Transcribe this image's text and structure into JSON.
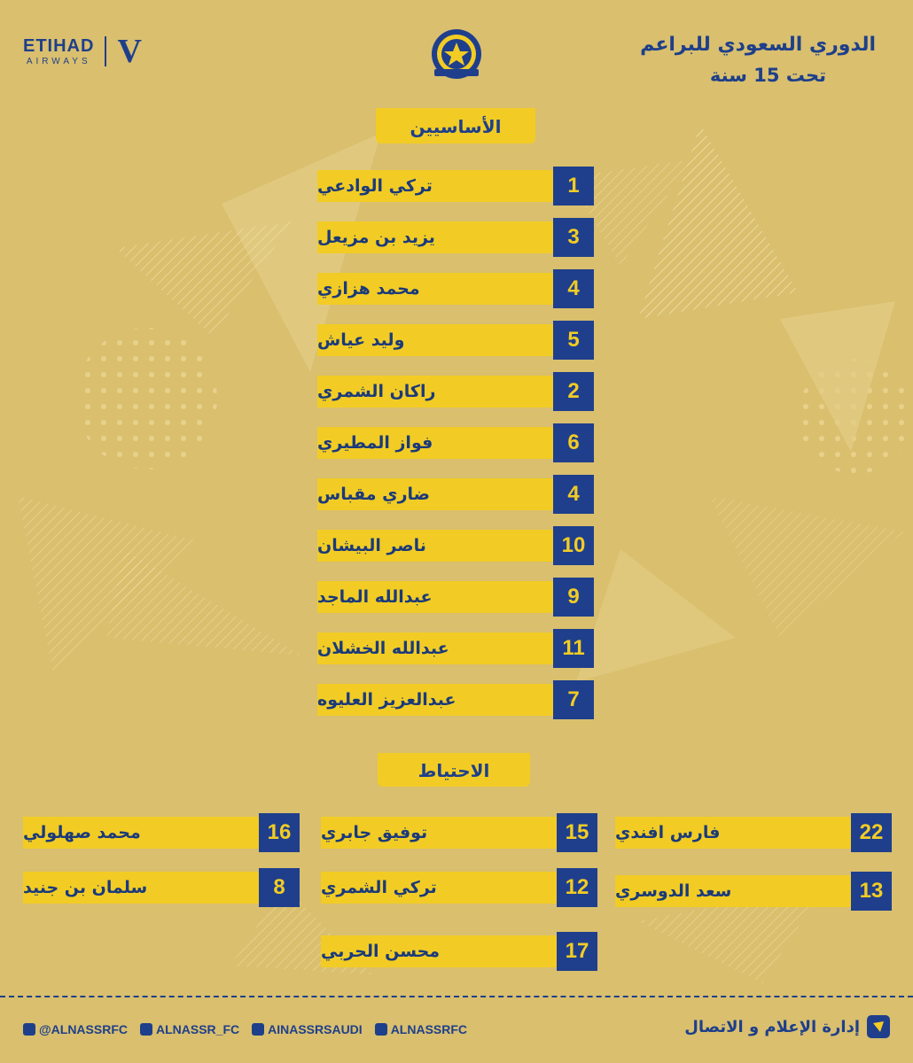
{
  "title": {
    "line1": "الدوري السعودي للبراعم",
    "line2": "تحت 15 سنة"
  },
  "sponsor": {
    "main": "ETIHAD",
    "sub": "AIRWAYS",
    "mark": "V"
  },
  "starters": {
    "header": "الأساسيين",
    "players": [
      {
        "number": "1",
        "name": "تركي الوادعي"
      },
      {
        "number": "3",
        "name": "يزيد بن مزيعل"
      },
      {
        "number": "4",
        "name": "محمد هزازي"
      },
      {
        "number": "5",
        "name": "وليد عياش"
      },
      {
        "number": "2",
        "name": "راكان الشمري"
      },
      {
        "number": "6",
        "name": "فواز المطيري"
      },
      {
        "number": "4",
        "name": "ضاري مقباس"
      },
      {
        "number": "10",
        "name": "ناصر البيشان"
      },
      {
        "number": "9",
        "name": "عبدالله الماجد"
      },
      {
        "number": "11",
        "name": "عبدالله الخشلان"
      },
      {
        "number": "7",
        "name": "عبدالعزيز العليوه"
      }
    ]
  },
  "substitutes": {
    "header": "الاحتياط",
    "players": [
      {
        "number": "22",
        "name": "فارس افندي"
      },
      {
        "number": "15",
        "name": "توفيق جابري"
      },
      {
        "number": "16",
        "name": "محمد صهلولي"
      },
      {
        "number": "13",
        "name": "سعد الدوسري"
      },
      {
        "number": "12",
        "name": "تركي الشمري"
      },
      {
        "number": "8",
        "name": "سلمان بن جنيد"
      },
      {
        "number": "17",
        "name": "محسن الحربي"
      }
    ]
  },
  "footer": {
    "social": [
      {
        "icon": "twitter-icon",
        "handle": "@ALNASSRFC"
      },
      {
        "icon": "instagram-icon",
        "handle": "ALNASSR_FC"
      },
      {
        "icon": "snapchat-icon",
        "handle": "AINASSRSAUDI"
      },
      {
        "icon": "youtube-icon",
        "handle": "ALNASSRFC"
      }
    ],
    "media_dept": "إدارة الإعلام و الاتصال"
  },
  "colors": {
    "background": "#d9bf6e",
    "accent_yellow": "#f2cc24",
    "brand_blue": "#1f3f8c"
  }
}
